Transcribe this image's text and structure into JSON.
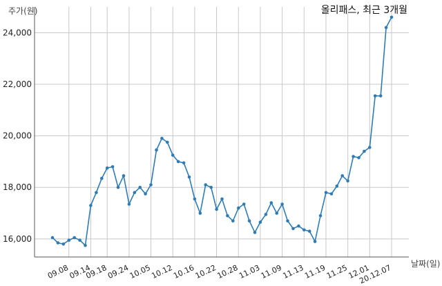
{
  "chart_data": {
    "type": "line",
    "title": "올리패스, 최근 3개월",
    "xlabel": "날짜(일)",
    "ylabel": "주가(원)",
    "grid": true,
    "legend": "none",
    "line_color": "#2e7bb5",
    "ylim": [
      15300,
      25000
    ],
    "yticks": [
      16000,
      18000,
      20000,
      22000,
      24000
    ],
    "ytick_labels": [
      "16,000",
      "18,000",
      "20,000",
      "22,000",
      "24,000"
    ],
    "xtick_labels": [
      "09.08",
      "09.14",
      "09.18",
      "09.24",
      "10.05",
      "10.12",
      "10.16",
      "10.22",
      "10.28",
      "11.03",
      "11.09",
      "11.13",
      "11.19",
      "11.25",
      "12.01",
      "20.12.07"
    ],
    "xtick_index": [
      3,
      7,
      10,
      14,
      18,
      22,
      26,
      30,
      34,
      38,
      42,
      46,
      50,
      54,
      58,
      62
    ],
    "values": [
      16050,
      15850,
      15800,
      15950,
      16050,
      15950,
      15750,
      17300,
      17800,
      18350,
      18750,
      18800,
      18000,
      18450,
      17350,
      17800,
      18000,
      17750,
      18100,
      19450,
      19900,
      19750,
      19250,
      19000,
      18950,
      18400,
      17550,
      17000,
      18100,
      18000,
      17150,
      17550,
      16900,
      16700,
      17200,
      17350,
      16700,
      16250,
      16650,
      16950,
      17400,
      17000,
      17350,
      16700,
      16400,
      16500,
      16350,
      16300,
      15900,
      16900,
      17800,
      17750,
      18050,
      18450,
      18250,
      19200,
      19150,
      19400,
      19550,
      21550,
      21550,
      24200,
      24600
    ]
  }
}
